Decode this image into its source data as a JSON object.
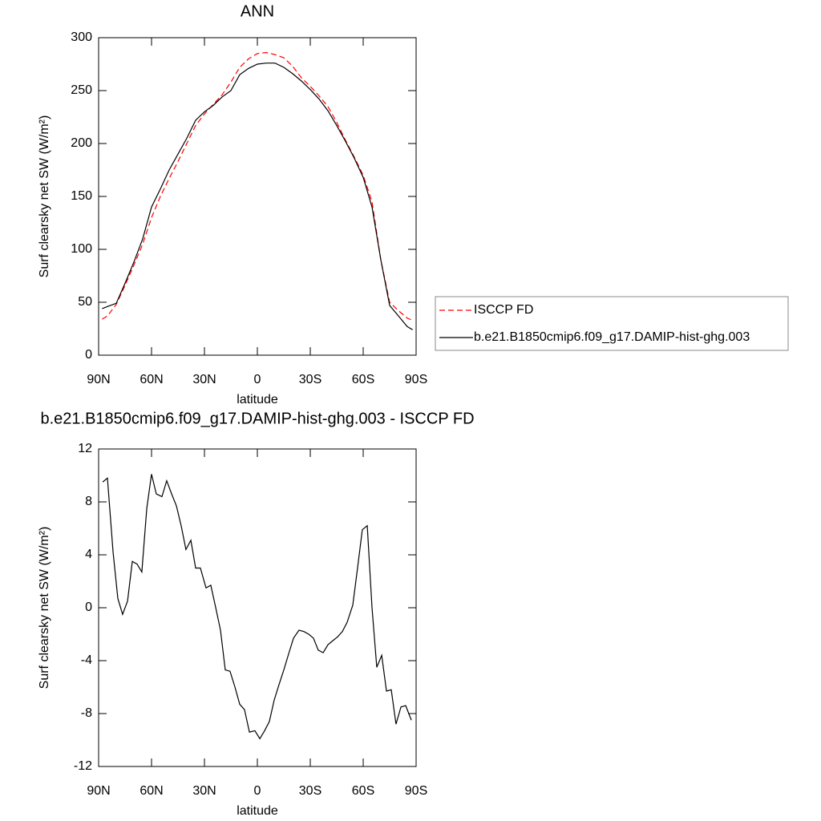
{
  "chart_data": [
    {
      "type": "line",
      "title": "ANN",
      "xlabel": "latitude",
      "ylabel": "Surf clearsky net SW (W/m²)",
      "x": [
        88,
        85,
        80,
        75,
        70,
        65,
        60,
        55,
        50,
        45,
        40,
        35,
        30,
        25,
        20,
        15,
        10,
        5,
        0,
        -5,
        -10,
        -15,
        -20,
        -25,
        -30,
        -35,
        -40,
        -45,
        -50,
        -55,
        -60,
        -65,
        -70,
        -75,
        -80,
        -85,
        -88
      ],
      "series": [
        {
          "name": "ISCCP FD",
          "color": "#ff0000",
          "linestyle": "dashed",
          "values": [
            34,
            37,
            48,
            66,
            85,
            105,
            130,
            150,
            167,
            183,
            200,
            217,
            228,
            237,
            246,
            258,
            272,
            280,
            285,
            286,
            284,
            281,
            273,
            262,
            254,
            245,
            235,
            220,
            203,
            187,
            170,
            145,
            90,
            50,
            42,
            35,
            33
          ]
        },
        {
          "name": "b.e21.B1850cmip6.f09_g17.DAMIP-hist-ghg.003",
          "color": "#000000",
          "linestyle": "solid",
          "values": [
            44,
            46,
            49,
            68,
            88,
            110,
            140,
            157,
            175,
            190,
            205,
            222,
            230,
            236,
            244,
            250,
            265,
            271,
            275,
            276,
            276,
            272,
            266,
            259,
            251,
            242,
            231,
            217,
            202,
            186,
            168,
            140,
            90,
            47,
            37,
            27,
            24
          ]
        }
      ],
      "xlim": [
        90,
        -90
      ],
      "ylim": [
        0,
        300
      ],
      "xticks": [
        {
          "value": 90,
          "label": "90N"
        },
        {
          "value": 60,
          "label": "60N"
        },
        {
          "value": 30,
          "label": "30N"
        },
        0,
        {
          "value": -30,
          "label": "30S"
        },
        {
          "value": -60,
          "label": "60S"
        },
        {
          "value": -90,
          "label": "90S"
        }
      ],
      "yticks": [
        0,
        50,
        100,
        150,
        200,
        250,
        300
      ],
      "legend": "right"
    },
    {
      "type": "line",
      "title": "b.e21.B1850cmip6.f09_g17.DAMIP-hist-ghg.003 - ISCCP FD",
      "xlabel": "latitude",
      "ylabel": "Surf clearsky net SW (W/m²)",
      "x": [
        87.7,
        85,
        81.8,
        79.1,
        76.4,
        73.6,
        70.9,
        68.2,
        65.5,
        62.7,
        60,
        57.3,
        54.1,
        51.4,
        48.6,
        45.9,
        43.2,
        40.5,
        37.7,
        35,
        32.3,
        29.1,
        26.4,
        23.6,
        20.9,
        18.2,
        15.5,
        12.7,
        10,
        7.3,
        4.5,
        1.4,
        -1.4,
        -4.1,
        -6.8,
        -9.5,
        -12.3,
        -15,
        -17.7,
        -20.5,
        -23.6,
        -26.4,
        -29.1,
        -31.8,
        -34.5,
        -37.3,
        -40,
        -42.7,
        -45.5,
        -48.2,
        -50.9,
        -54.1,
        -56.8,
        -59.5,
        -62.3,
        -65,
        -67.7,
        -70.5,
        -73.2,
        -75.9,
        -78.6,
        -81.4,
        -84.1,
        -87.3
      ],
      "series": [
        {
          "name": null,
          "color": "#000000",
          "linestyle": "solid",
          "values": [
            9.5,
            9.8,
            4.2,
            0.7,
            -0.5,
            0.5,
            3.5,
            3.3,
            2.7,
            7.5,
            10.1,
            8.6,
            8.4,
            9.6,
            8.6,
            7.7,
            6.2,
            4.4,
            5.1,
            3.0,
            3.0,
            1.5,
            1.7,
            0,
            -1.7,
            -4.7,
            -4.8,
            -6.0,
            -7.3,
            -7.7,
            -9.4,
            -9.3,
            -9.9,
            -9.3,
            -8.6,
            -7.0,
            -5.8,
            -4.7,
            -3.5,
            -2.3,
            -1.7,
            -1.8,
            -2.0,
            -2.3,
            -3.2,
            -3.4,
            -2.8,
            -2.5,
            -2.2,
            -1.8,
            -1.1,
            0.2,
            3.0,
            5.9,
            6.2,
            0,
            -4.5,
            -3.6,
            -6.3,
            -6.2,
            -8.8,
            -7.5,
            -7.4,
            -8.5
          ]
        }
      ],
      "xlim": [
        90,
        -90
      ],
      "ylim": [
        -12,
        12
      ],
      "xticks": [
        {
          "value": 90,
          "label": "90N"
        },
        {
          "value": 60,
          "label": "60N"
        },
        {
          "value": 30,
          "label": "30N"
        },
        0,
        {
          "value": -30,
          "label": "30S"
        },
        {
          "value": -60,
          "label": "60S"
        },
        {
          "value": -90,
          "label": "90S"
        }
      ],
      "yticks": [
        12,
        8,
        4,
        0,
        -4,
        -8,
        -12
      ]
    }
  ]
}
